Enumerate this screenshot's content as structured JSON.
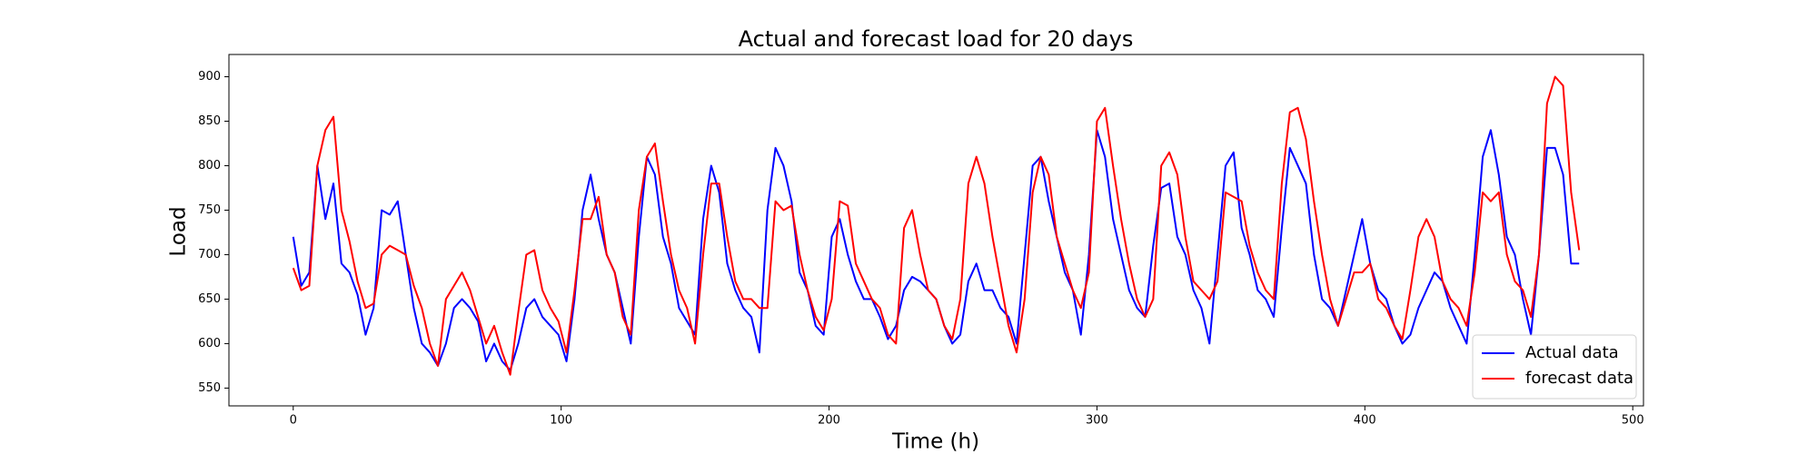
{
  "chart_data": {
    "type": "line",
    "title": "Actual and forecast load for 20 days",
    "x_label": "Time (h)",
    "y_label": "Load",
    "x": [
      0,
      3,
      6,
      9,
      12,
      15,
      18,
      21,
      24,
      27,
      30,
      33,
      36,
      39,
      42,
      45,
      48,
      51,
      54,
      57,
      60,
      63,
      66,
      69,
      72,
      75,
      78,
      81,
      84,
      87,
      90,
      93,
      96,
      99,
      102,
      105,
      108,
      111,
      114,
      117,
      120,
      123,
      126,
      129,
      132,
      135,
      138,
      141,
      144,
      147,
      150,
      153,
      156,
      159,
      162,
      165,
      168,
      171,
      174,
      177,
      180,
      183,
      186,
      189,
      192,
      195,
      198,
      201,
      204,
      207,
      210,
      213,
      216,
      219,
      222,
      225,
      228,
      231,
      234,
      237,
      240,
      243,
      246,
      249,
      252,
      255,
      258,
      261,
      264,
      267,
      270,
      273,
      276,
      279,
      282,
      285,
      288,
      291,
      294,
      297,
      300,
      303,
      306,
      309,
      312,
      315,
      318,
      321,
      324,
      327,
      330,
      333,
      336,
      339,
      342,
      345,
      348,
      351,
      354,
      357,
      360,
      363,
      366,
      369,
      372,
      375,
      378,
      381,
      384,
      387,
      390,
      393,
      396,
      399,
      402,
      405,
      408,
      411,
      414,
      417,
      420,
      423,
      426,
      429,
      432,
      435,
      438,
      441,
      444,
      447,
      450,
      453,
      456,
      459,
      462,
      465,
      468,
      471,
      474,
      477,
      480
    ],
    "series": [
      {
        "name": "Actual data",
        "color": "#0000ff",
        "values": [
          720,
          665,
          680,
          800,
          740,
          780,
          690,
          680,
          655,
          610,
          640,
          750,
          745,
          760,
          700,
          640,
          600,
          590,
          575,
          600,
          640,
          650,
          640,
          625,
          580,
          600,
          580,
          570,
          600,
          640,
          650,
          630,
          620,
          610,
          580,
          650,
          750,
          790,
          740,
          700,
          680,
          640,
          600,
          720,
          810,
          790,
          720,
          690,
          640,
          625,
          610,
          740,
          800,
          770,
          690,
          660,
          640,
          630,
          590,
          750,
          820,
          800,
          760,
          680,
          660,
          620,
          610,
          720,
          740,
          700,
          670,
          650,
          650,
          630,
          605,
          620,
          660,
          675,
          670,
          660,
          650,
          620,
          600,
          610,
          670,
          690,
          660,
          660,
          640,
          630,
          600,
          700,
          800,
          810,
          760,
          720,
          680,
          660,
          610,
          700,
          840,
          810,
          740,
          700,
          660,
          640,
          630,
          710,
          775,
          780,
          720,
          700,
          660,
          640,
          600,
          700,
          800,
          815,
          730,
          700,
          660,
          650,
          630,
          730,
          820,
          800,
          780,
          700,
          650,
          640,
          620,
          660,
          700,
          740,
          690,
          660,
          650,
          620,
          600,
          610,
          640,
          660,
          680,
          670,
          640,
          620,
          600,
          700,
          810,
          840,
          790,
          720,
          700,
          650,
          610,
          700,
          820,
          820,
          790,
          690,
          690
        ]
      },
      {
        "name": "forecast data",
        "color": "#ff0000",
        "values": [
          685,
          660,
          665,
          800,
          840,
          855,
          750,
          715,
          670,
          640,
          645,
          700,
          710,
          705,
          700,
          665,
          640,
          600,
          575,
          650,
          665,
          680,
          660,
          630,
          600,
          620,
          590,
          565,
          635,
          700,
          705,
          660,
          640,
          625,
          590,
          660,
          740,
          740,
          765,
          700,
          680,
          630,
          610,
          750,
          810,
          825,
          760,
          700,
          660,
          640,
          600,
          700,
          780,
          780,
          720,
          670,
          650,
          650,
          640,
          640,
          760,
          750,
          755,
          700,
          660,
          630,
          615,
          650,
          760,
          755,
          690,
          670,
          650,
          640,
          610,
          600,
          730,
          750,
          700,
          660,
          650,
          620,
          605,
          650,
          780,
          810,
          780,
          720,
          670,
          620,
          590,
          650,
          770,
          810,
          790,
          720,
          690,
          660,
          640,
          680,
          850,
          865,
          800,
          740,
          690,
          650,
          630,
          650,
          800,
          815,
          790,
          720,
          670,
          660,
          650,
          670,
          770,
          765,
          760,
          710,
          680,
          660,
          650,
          780,
          860,
          865,
          830,
          760,
          700,
          650,
          620,
          650,
          680,
          680,
          690,
          650,
          640,
          620,
          605,
          660,
          720,
          740,
          720,
          670,
          650,
          640,
          620,
          680,
          770,
          760,
          770,
          700,
          670,
          660,
          630,
          700,
          870,
          900,
          890,
          770,
          705
        ]
      }
    ],
    "xlim": [
      -24,
      504
    ],
    "ylim": [
      530,
      925
    ],
    "xticks": [
      0,
      100,
      200,
      300,
      400,
      500
    ],
    "yticks": [
      550,
      600,
      650,
      700,
      750,
      800,
      850,
      900
    ],
    "legend": "lower right"
  }
}
